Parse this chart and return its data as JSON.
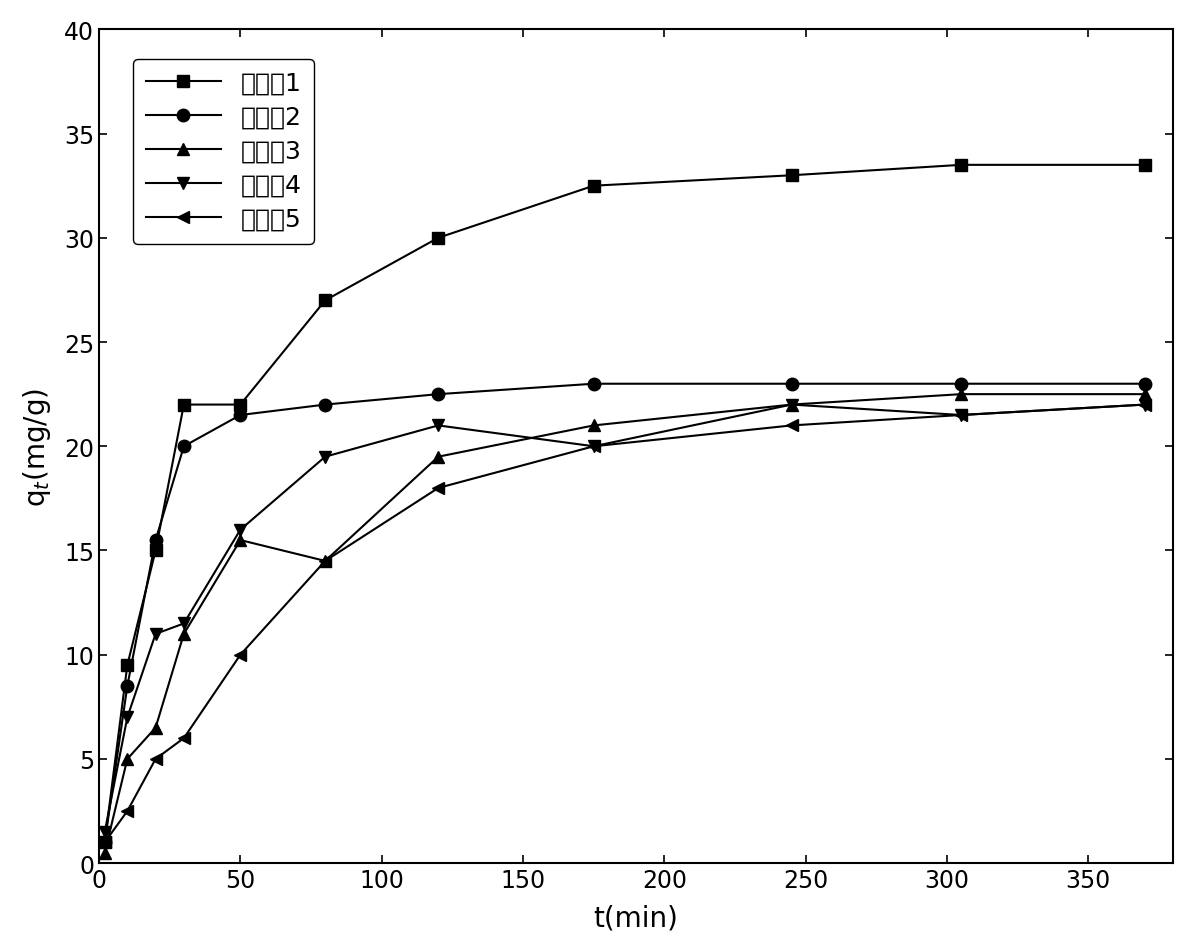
{
  "series": [
    {
      "label": "实施例1",
      "marker": "s",
      "x": [
        2,
        10,
        20,
        30,
        50,
        80,
        120,
        175,
        245,
        305,
        370
      ],
      "y": [
        1.0,
        9.5,
        15.0,
        22.0,
        22.0,
        27.0,
        30.0,
        32.5,
        33.0,
        33.5,
        33.5
      ]
    },
    {
      "label": "实施例2",
      "marker": "o",
      "x": [
        2,
        10,
        20,
        30,
        50,
        80,
        120,
        175,
        245,
        305,
        370
      ],
      "y": [
        1.0,
        8.5,
        15.5,
        20.0,
        21.5,
        22.0,
        22.5,
        23.0,
        23.0,
        23.0,
        23.0
      ]
    },
    {
      "label": "实施例3",
      "marker": "^",
      "x": [
        2,
        10,
        20,
        30,
        50,
        80,
        120,
        175,
        245,
        305,
        370
      ],
      "y": [
        0.5,
        5.0,
        6.5,
        11.0,
        15.5,
        14.5,
        19.5,
        21.0,
        22.0,
        22.5,
        22.5
      ]
    },
    {
      "label": "实施例4",
      "marker": "v",
      "x": [
        2,
        10,
        20,
        30,
        50,
        80,
        120,
        175,
        245,
        305,
        370
      ],
      "y": [
        1.5,
        7.0,
        11.0,
        11.5,
        16.0,
        19.5,
        21.0,
        20.0,
        22.0,
        21.5,
        22.0
      ]
    },
    {
      "label": "实施例5",
      "marker": "<",
      "x": [
        2,
        10,
        20,
        30,
        50,
        80,
        120,
        175,
        245,
        305,
        370
      ],
      "y": [
        1.0,
        2.5,
        5.0,
        6.0,
        10.0,
        14.5,
        18.0,
        20.0,
        21.0,
        21.5,
        22.0
      ]
    }
  ],
  "xlabel": "t(min)",
  "ylabel": "q$_t$(mg/g)",
  "xlim": [
    0,
    380
  ],
  "ylim": [
    0,
    40
  ],
  "xticks": [
    0,
    50,
    100,
    150,
    200,
    250,
    300,
    350
  ],
  "yticks": [
    0,
    5,
    10,
    15,
    20,
    25,
    30,
    35,
    40
  ],
  "line_color": "black",
  "marker_color": "black",
  "marker_size": 9,
  "linewidth": 1.5,
  "legend_fontsize": 18,
  "tick_fontsize": 17,
  "label_fontsize": 20,
  "background_color": "#ffffff"
}
